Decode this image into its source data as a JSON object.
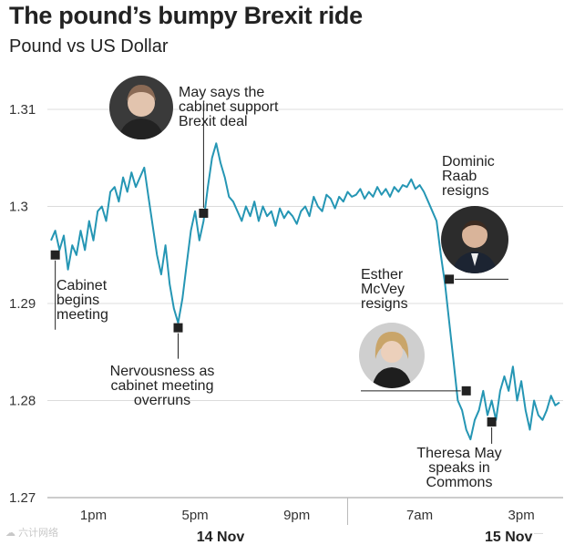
{
  "title": "The pound’s bumpy Brexit ride",
  "subtitle": "Pound vs US Dollar",
  "watermark": "六计网络",
  "watermark_right": "—",
  "chart_data": {
    "type": "line",
    "title": "The pound’s bumpy Brexit ride",
    "subtitle": "Pound vs US Dollar",
    "ylabel": "",
    "xlabel": "",
    "ylim": [
      1.27,
      1.315
    ],
    "xlim": [
      0,
      120
    ],
    "y_ticks": [
      {
        "value": 1.31,
        "label": "1.31"
      },
      {
        "value": 1.3,
        "label": "1.3"
      },
      {
        "value": 1.29,
        "label": "1.29"
      },
      {
        "value": 1.28,
        "label": "1.28"
      },
      {
        "value": 1.27,
        "label": "1.27"
      }
    ],
    "x_ticks": [
      {
        "x": 10,
        "label": "1pm"
      },
      {
        "x": 34,
        "label": "5pm"
      },
      {
        "x": 58,
        "label": "9pm"
      },
      {
        "x": 87,
        "label": "7am"
      },
      {
        "x": 111,
        "label": "3pm"
      }
    ],
    "day_labels": [
      {
        "x": 40,
        "label": "14 Nov"
      },
      {
        "x": 108,
        "label": "15 Nov"
      }
    ],
    "day_divider_x": 70,
    "series": [
      {
        "name": "GBP/USD",
        "color": "#2596b4",
        "x": [
          0,
          1,
          2,
          3,
          4,
          5,
          6,
          7,
          8,
          9,
          10,
          11,
          12,
          13,
          14,
          15,
          16,
          17,
          18,
          19,
          20,
          21,
          22,
          23,
          24,
          25,
          26,
          27,
          28,
          29,
          30,
          31,
          32,
          33,
          34,
          35,
          36,
          37,
          38,
          39,
          40,
          41,
          42,
          43,
          44,
          45,
          46,
          47,
          48,
          49,
          50,
          51,
          52,
          53,
          54,
          55,
          56,
          57,
          58,
          59,
          60,
          61,
          62,
          63,
          64,
          65,
          66,
          67,
          68,
          69,
          70,
          71,
          72,
          73,
          74,
          75,
          76,
          77,
          78,
          79,
          80,
          81,
          82,
          83,
          84,
          85,
          86,
          87,
          88,
          89,
          90,
          91,
          92,
          93,
          94,
          95,
          96,
          97,
          98,
          99,
          100,
          101,
          102,
          103,
          104,
          105,
          106,
          107,
          108,
          109,
          110,
          111,
          112,
          113,
          114,
          115,
          116,
          117,
          118,
          119,
          120
        ],
        "values": [
          1.2965,
          1.2975,
          1.2955,
          1.297,
          1.2935,
          1.296,
          1.295,
          1.2975,
          1.2955,
          1.2985,
          1.2965,
          1.2995,
          1.3,
          1.2985,
          1.3015,
          1.302,
          1.3005,
          1.303,
          1.3015,
          1.3035,
          1.302,
          1.303,
          1.304,
          1.301,
          1.298,
          1.295,
          1.293,
          1.296,
          1.292,
          1.2895,
          1.288,
          1.2905,
          1.294,
          1.2975,
          1.2995,
          1.2965,
          1.2985,
          1.302,
          1.305,
          1.3065,
          1.3045,
          1.303,
          1.301,
          1.3005,
          1.2995,
          1.2985,
          1.3,
          1.299,
          1.3005,
          1.2985,
          1.3,
          1.299,
          1.2995,
          1.298,
          1.2998,
          1.2988,
          1.2995,
          1.299,
          1.2982,
          1.2995,
          1.3,
          1.299,
          1.301,
          1.3,
          1.2995,
          1.3012,
          1.3008,
          1.2998,
          1.301,
          1.3005,
          1.3015,
          1.301,
          1.3012,
          1.3018,
          1.3008,
          1.3015,
          1.301,
          1.302,
          1.3012,
          1.3018,
          1.301,
          1.302,
          1.3015,
          1.3022,
          1.302,
          1.3028,
          1.3018,
          1.3022,
          1.3015,
          1.3005,
          1.2995,
          1.2985,
          1.295,
          1.292,
          1.288,
          1.284,
          1.28,
          1.279,
          1.277,
          1.276,
          1.278,
          1.279,
          1.281,
          1.2785,
          1.28,
          1.278,
          1.281,
          1.2825,
          1.281,
          1.2835,
          1.28,
          1.282,
          1.279,
          1.277,
          1.28,
          1.2785,
          1.278,
          1.279,
          1.2805,
          1.2795,
          1.2798
        ]
      }
    ],
    "annotations": [
      {
        "name": "cabinet-begins",
        "x": 1,
        "y": 1.295,
        "lines": [
          "Cabinet",
          "begins",
          "meeting"
        ],
        "leader": "down"
      },
      {
        "name": "nervousness",
        "x": 30,
        "y": 1.2875,
        "lines": [
          "Nervousness as",
          "cabinet meeting",
          "overruns"
        ],
        "leader": "down"
      },
      {
        "name": "may-says",
        "x": 36,
        "y": 1.2993,
        "lines": [
          "May says the",
          "cabinet support",
          "Brexit deal"
        ],
        "leader": "up"
      },
      {
        "name": "raab-resigns",
        "x": 94,
        "y": 1.2925,
        "lines": [
          "Dominic",
          "Raab",
          "resigns"
        ],
        "leader": "right"
      },
      {
        "name": "mcvey-resigns",
        "x": 98,
        "y": 1.281,
        "lines": [
          "Esther",
          "McVey",
          "resigns"
        ],
        "leader": "left"
      },
      {
        "name": "may-commons",
        "x": 104,
        "y": 1.2778,
        "lines": [
          "Theresa May",
          "speaks in",
          "Commons"
        ],
        "leader": "down"
      }
    ]
  }
}
